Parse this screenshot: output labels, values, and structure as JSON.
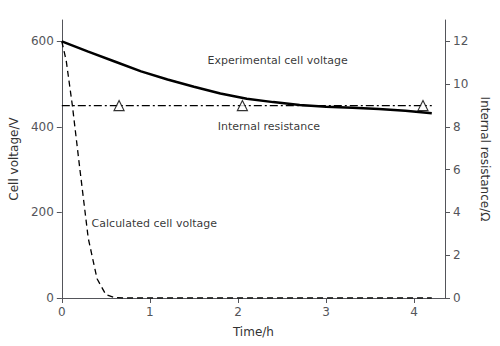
{
  "chart_data": {
    "type": "line",
    "xlabel": "Time/h",
    "ylabel": "Cell voltage/V",
    "y2label": "Internal resistance/Ω",
    "xlim": [
      0,
      4.35
    ],
    "ylim": [
      0,
      650
    ],
    "y2lim": [
      0,
      13
    ],
    "xticks": [
      0,
      1,
      2,
      3,
      4
    ],
    "yticks": [
      0,
      200,
      400,
      600
    ],
    "y2ticks": [
      0,
      2,
      4,
      6,
      8,
      10,
      12
    ],
    "grid": false,
    "legend": false,
    "series": [
      {
        "type": "line",
        "line_style": "dashed",
        "color": "#000000",
        "x": [
          0.0,
          0.05,
          0.12,
          0.2,
          0.3,
          0.4,
          0.5,
          0.6,
          0.7,
          4.2
        ],
        "values": [
          600,
          555,
          450,
          310,
          140,
          45,
          8,
          1,
          0,
          0
        ]
      },
      {
        "type": "line",
        "line_style": "dashdot",
        "color": "#000000",
        "axis": "y2",
        "x": [
          0.0,
          4.2
        ],
        "values": [
          9.0,
          9.0
        ]
      },
      {
        "type": "scatter",
        "marker": "triangle",
        "color": "#000000",
        "axis": "y2",
        "x": [
          0.65,
          2.05,
          4.1
        ],
        "values": [
          9.0,
          9.0,
          9.0
        ]
      },
      {
        "type": "line",
        "line_style": "solid",
        "color": "#000000",
        "x": [
          0.0,
          0.3,
          0.6,
          0.9,
          1.2,
          1.5,
          1.8,
          2.1,
          2.4,
          2.7,
          3.0,
          3.3,
          3.6,
          3.9,
          4.2
        ],
        "values": [
          600,
          576,
          553,
          530,
          511,
          494,
          478,
          466,
          458,
          451,
          447,
          445,
          442,
          438,
          432
        ]
      }
    ],
    "annotations": [
      {
        "text": "Experimental cell voltage",
        "x": 2.45,
        "y": 555
      },
      {
        "text": "Calculated cell voltage",
        "x": 1.05,
        "y": 175
      },
      {
        "text": "Internal resistance",
        "x": 2.35,
        "y": 400
      }
    ]
  }
}
